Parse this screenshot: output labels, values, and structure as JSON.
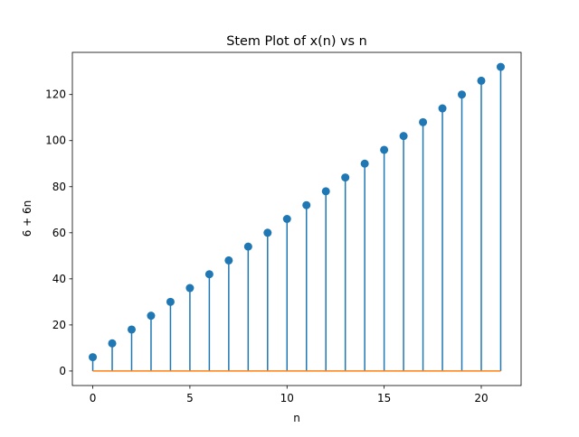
{
  "chart_data": {
    "type": "stem",
    "title": "Stem Plot of x(n) vs n",
    "xlabel": "n",
    "ylabel": "6 + 6n",
    "xlim": [
      -1.05,
      22.05
    ],
    "ylim": [
      -6.3,
      138.3
    ],
    "xticks": [
      0,
      5,
      10,
      15,
      20
    ],
    "yticks": [
      0,
      20,
      40,
      60,
      80,
      100,
      120
    ],
    "grid": false,
    "series": [
      {
        "x": [
          0,
          1,
          2,
          3,
          4,
          5,
          6,
          7,
          8,
          9,
          10,
          11,
          12,
          13,
          14,
          15,
          16,
          17,
          18,
          19,
          20,
          21
        ],
        "y": [
          6,
          12,
          18,
          24,
          30,
          36,
          42,
          48,
          54,
          60,
          66,
          72,
          78,
          84,
          90,
          96,
          102,
          108,
          114,
          120,
          126,
          132
        ],
        "color": "#1f77b4"
      }
    ],
    "baseline": {
      "y": 0,
      "color": "#ff7f0e"
    }
  }
}
